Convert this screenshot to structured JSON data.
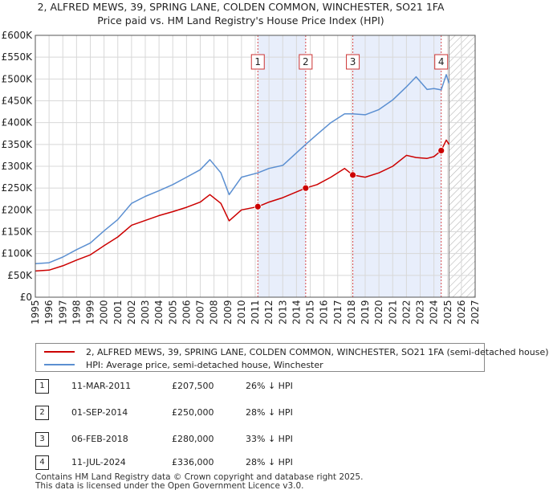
{
  "title": {
    "line1": "2, ALFRED MEWS, 39, SPRING LANE, COLDEN COMMON, WINCHESTER, SO21 1FA",
    "line2": "Price paid vs. HM Land Registry's House Price Index (HPI)"
  },
  "colors": {
    "price": "#cc0000",
    "hpi": "#5b8fd1",
    "shade": "#e8eefb",
    "marker_line": "#cc0000",
    "grid": "#d8d8d8"
  },
  "legend": {
    "price_label": "2, ALFRED MEWS, 39, SPRING LANE, COLDEN COMMON, WINCHESTER, SO21 1FA (semi-detached house)",
    "hpi_label": "HPI: Average price, semi-detached house, Winchester"
  },
  "sales": [
    {
      "num": "1",
      "date": "11-MAR-2011",
      "price": "£207,500",
      "hpi": "26% ↓ HPI"
    },
    {
      "num": "2",
      "date": "01-SEP-2014",
      "price": "£250,000",
      "hpi": "28% ↓ HPI"
    },
    {
      "num": "3",
      "date": "06-FEB-2018",
      "price": "£280,000",
      "hpi": "33% ↓ HPI"
    },
    {
      "num": "4",
      "date": "11-JUL-2024",
      "price": "£336,000",
      "hpi": "28% ↓ HPI"
    }
  ],
  "footer": {
    "line1": "Contains HM Land Registry data © Crown copyright and database right 2025.",
    "line2": "This data is licensed under the Open Government Licence v3.0."
  },
  "chart_data": {
    "type": "line",
    "xlim": [
      1995,
      2027
    ],
    "ylim": [
      0,
      600000
    ],
    "y_ticks": [
      0,
      50000,
      100000,
      150000,
      200000,
      250000,
      300000,
      350000,
      400000,
      450000,
      500000,
      550000,
      600000
    ],
    "y_tick_labels": [
      "£0",
      "£50K",
      "£100K",
      "£150K",
      "£200K",
      "£250K",
      "£300K",
      "£350K",
      "£400K",
      "£450K",
      "£500K",
      "£550K",
      "£600K"
    ],
    "x_ticks": [
      1995,
      1996,
      1997,
      1998,
      1999,
      2000,
      2001,
      2002,
      2003,
      2004,
      2005,
      2006,
      2007,
      2008,
      2009,
      2010,
      2011,
      2012,
      2013,
      2014,
      2015,
      2016,
      2017,
      2018,
      2019,
      2020,
      2021,
      2022,
      2023,
      2024,
      2025,
      2026,
      2027
    ],
    "grid": true,
    "forecast_start": 2025.1,
    "sale_events": [
      {
        "label": "1",
        "x": 2011.19,
        "y": 207500
      },
      {
        "label": "2",
        "x": 2014.67,
        "y": 250000
      },
      {
        "label": "3",
        "x": 2018.1,
        "y": 280000
      },
      {
        "label": "4",
        "x": 2024.53,
        "y": 336000
      }
    ],
    "series": [
      {
        "name": "2, ALFRED MEWS, 39, SPRING LANE, COLDEN COMMON, WINCHESTER, SO21 1FA (semi-detached house)",
        "color": "#cc0000",
        "x": [
          1995,
          1996,
          1997,
          1998,
          1999,
          2000,
          2001,
          2002,
          2003,
          2004,
          2005,
          2006,
          2007,
          2007.7,
          2008.5,
          2009.1,
          2010,
          2011.19,
          2012,
          2013,
          2014.67,
          2015.5,
          2016.5,
          2017.5,
          2018.1,
          2019,
          2020,
          2021,
          2022,
          2022.7,
          2023.5,
          2024,
          2024.53,
          2024.9,
          2025.1
        ],
        "values": [
          60000,
          62000,
          72000,
          85000,
          97000,
          118000,
          138000,
          165000,
          176000,
          187000,
          196000,
          206000,
          218000,
          235000,
          215000,
          175000,
          200000,
          207500,
          218000,
          228000,
          250000,
          258000,
          275000,
          295000,
          280000,
          275000,
          285000,
          300000,
          325000,
          320000,
          318000,
          322000,
          336000,
          360000,
          350000
        ]
      },
      {
        "name": "HPI: Average price, semi-detached house, Winchester",
        "color": "#5b8fd1",
        "x": [
          1995,
          1996,
          1997,
          1998,
          1999,
          2000,
          2001,
          2002,
          2003,
          2004,
          2005,
          2006,
          2007,
          2007.7,
          2008.5,
          2009.1,
          2010,
          2011.19,
          2012,
          2013,
          2014.67,
          2015.5,
          2016.5,
          2017.5,
          2018.1,
          2019,
          2020,
          2021,
          2022,
          2022.7,
          2023.5,
          2024,
          2024.53,
          2024.9,
          2025.1
        ],
        "values": [
          77000,
          79000,
          92000,
          109000,
          124000,
          152000,
          178000,
          215000,
          231000,
          244000,
          258000,
          275000,
          292000,
          315000,
          285000,
          235000,
          275000,
          285000,
          295000,
          302000,
          350000,
          373000,
          400000,
          420000,
          420000,
          418000,
          430000,
          452000,
          482000,
          505000,
          476000,
          478000,
          475000,
          510000,
          490000
        ]
      }
    ]
  }
}
